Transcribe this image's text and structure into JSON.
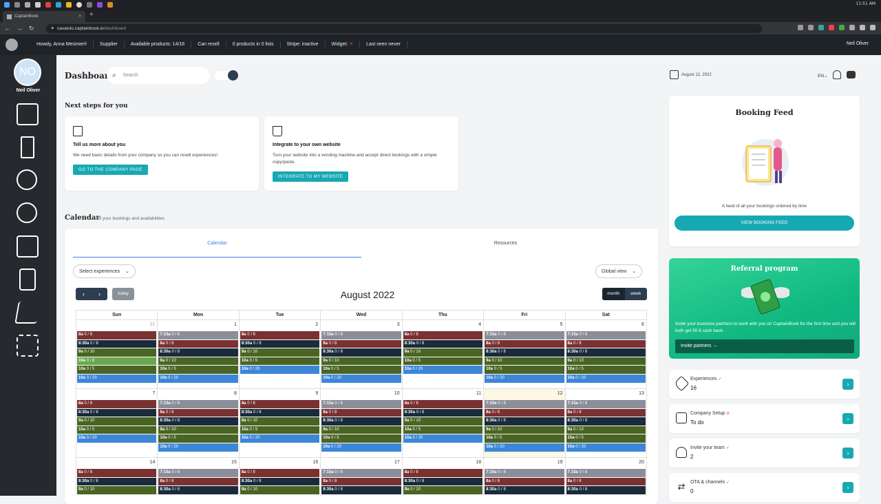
{
  "os": {
    "clock": "11:51 AM"
  },
  "browser": {
    "tab_title": "CaptainBook",
    "url_host": "casaiolo.captainbook.io",
    "url_path": "/dashboard"
  },
  "adminbar": {
    "items": [
      "Howdy, Anna Mesimeri!",
      "Supplier",
      "Available products: 14/16",
      "Can resell",
      "0 products in 0 lists",
      "Stripe: inactive",
      "Widget:",
      "Last seen never"
    ],
    "user": "Neil Oliver"
  },
  "sidebar": {
    "initials": "NO",
    "name": "Neil Oliver"
  },
  "header": {
    "title": "Dashboard",
    "search_placeholder": "Search",
    "date": "August 12, 2022",
    "lang": "EN"
  },
  "next_steps": {
    "title": "Next steps for you",
    "cards": [
      {
        "title": "Tell us more about you",
        "text": "We need basic details from your company so you can resell experiences!",
        "button": "GO TO THE COMPANY PAGE",
        "icon": "building-icon"
      },
      {
        "title": "Integrate to your own website",
        "text": "Turn your website into a vending machine and accept direct bookings with a simple copy/paste.",
        "button": "INTEGRATE TO MY WEBSITE",
        "icon": "cart-icon"
      }
    ]
  },
  "calendar": {
    "title": "Calendar",
    "subtitle": "All your bookings and availabilities",
    "tabs": [
      "Calendar",
      "Resources"
    ],
    "select_experiences": "Select experiences",
    "global_view": "Global view",
    "today": "today",
    "month_title": "August 2022",
    "view_month": "month",
    "view_week": "week",
    "days": [
      "Sun",
      "Mon",
      "Tue",
      "Wed",
      "Thu",
      "Fri",
      "Sat"
    ],
    "colors": {
      "red": "#7a3131",
      "navy": "#1a2b3b",
      "olive": "#4a6424",
      "blue": "#3d86d6",
      "gray": "#8b8e99",
      "green": "#6aa84f"
    },
    "weeks": [
      {
        "days": [
          {
            "num": "31",
            "other": true,
            "events": [
              [
                "8a",
                "0 / 8",
                "red"
              ],
              [
                "8:30a",
                "0 / 8",
                "navy"
              ],
              [
                "9a",
                "0 / 10",
                "olive"
              ],
              [
                "10a",
                "0 / 8",
                "green"
              ],
              [
                "10a",
                "0 / 5",
                "olive"
              ],
              [
                "10a",
                "0 / 20",
                "blue"
              ]
            ]
          },
          {
            "num": "1",
            "events": [
              [
                "7:15a",
                "0 / 8",
                "gray"
              ],
              [
                "8a",
                "0 / 8",
                "red"
              ],
              [
                "8:30a",
                "0 / 8",
                "navy"
              ],
              [
                "9a",
                "0 / 10",
                "olive"
              ],
              [
                "10a",
                "0 / 5",
                "olive"
              ],
              [
                "10a",
                "0 / 20",
                "blue"
              ]
            ]
          },
          {
            "num": "2",
            "events": [
              [
                "8a",
                "0 / 8",
                "red"
              ],
              [
                "8:30a",
                "0 / 8",
                "navy"
              ],
              [
                "9a",
                "0 / 10",
                "olive"
              ],
              [
                "10a",
                "0 / 5",
                "olive"
              ],
              [
                "10a",
                "0 / 20",
                "blue"
              ]
            ]
          },
          {
            "num": "3",
            "events": [
              [
                "7:15a",
                "0 / 8",
                "gray"
              ],
              [
                "8a",
                "0 / 8",
                "red"
              ],
              [
                "8:30a",
                "0 / 8",
                "navy"
              ],
              [
                "9a",
                "0 / 10",
                "olive"
              ],
              [
                "10a",
                "0 / 5",
                "olive"
              ],
              [
                "10a",
                "0 / 20",
                "blue"
              ]
            ]
          },
          {
            "num": "4",
            "events": [
              [
                "8a",
                "0 / 8",
                "red"
              ],
              [
                "8:30a",
                "0 / 8",
                "navy"
              ],
              [
                "9a",
                "0 / 10",
                "olive"
              ],
              [
                "10a",
                "0 / 5",
                "olive"
              ],
              [
                "10a",
                "0 / 20",
                "blue"
              ]
            ]
          },
          {
            "num": "5",
            "events": [
              [
                "7:15a",
                "0 / 8",
                "gray"
              ],
              [
                "8a",
                "0 / 8",
                "red"
              ],
              [
                "8:30a",
                "0 / 8",
                "navy"
              ],
              [
                "9a",
                "0 / 10",
                "olive"
              ],
              [
                "10a",
                "0 / 5",
                "olive"
              ],
              [
                "10a",
                "0 / 20",
                "blue"
              ]
            ]
          },
          {
            "num": "6",
            "events": [
              [
                "7:15a",
                "0 / 8",
                "gray"
              ],
              [
                "8a",
                "0 / 8",
                "red"
              ],
              [
                "8:30a",
                "0 / 8",
                "navy"
              ],
              [
                "9a",
                "0 / 10",
                "olive"
              ],
              [
                "10a",
                "0 / 5",
                "olive"
              ],
              [
                "10a",
                "0 / 20",
                "blue"
              ]
            ]
          }
        ]
      },
      {
        "days": [
          {
            "num": "7",
            "events": [
              [
                "8a",
                "0 / 8",
                "red"
              ],
              [
                "8:30a",
                "0 / 8",
                "navy"
              ],
              [
                "9a",
                "0 / 10",
                "olive"
              ],
              [
                "10a",
                "0 / 5",
                "olive"
              ],
              [
                "10a",
                "0 / 20",
                "blue"
              ]
            ]
          },
          {
            "num": "8",
            "events": [
              [
                "7:15a",
                "0 / 8",
                "gray"
              ],
              [
                "8a",
                "0 / 8",
                "red"
              ],
              [
                "8:30a",
                "0 / 8",
                "navy"
              ],
              [
                "9a",
                "0 / 10",
                "olive"
              ],
              [
                "10a",
                "0 / 5",
                "olive"
              ],
              [
                "10a",
                "0 / 20",
                "blue"
              ]
            ]
          },
          {
            "num": "9",
            "events": [
              [
                "8a",
                "0 / 8",
                "red"
              ],
              [
                "8:30a",
                "0 / 8",
                "navy"
              ],
              [
                "9a",
                "0 / 10",
                "olive"
              ],
              [
                "10a",
                "0 / 5",
                "olive"
              ],
              [
                "10a",
                "0 / 20",
                "blue"
              ]
            ]
          },
          {
            "num": "10",
            "events": [
              [
                "7:15a",
                "0 / 8",
                "gray"
              ],
              [
                "8a",
                "0 / 8",
                "red"
              ],
              [
                "8:30a",
                "0 / 8",
                "navy"
              ],
              [
                "9a",
                "0 / 10",
                "olive"
              ],
              [
                "10a",
                "0 / 5",
                "olive"
              ],
              [
                "10a",
                "0 / 20",
                "blue"
              ]
            ]
          },
          {
            "num": "11",
            "events": [
              [
                "8a",
                "0 / 8",
                "red"
              ],
              [
                "8:30a",
                "0 / 8",
                "navy"
              ],
              [
                "9a",
                "0 / 10",
                "olive"
              ],
              [
                "10a",
                "0 / 5",
                "olive"
              ],
              [
                "10a",
                "0 / 20",
                "blue"
              ]
            ]
          },
          {
            "num": "12",
            "today": true,
            "events": [
              [
                "7:15a",
                "0 / 8",
                "gray"
              ],
              [
                "8a",
                "0 / 8",
                "red"
              ],
              [
                "8:30a",
                "0 / 8",
                "navy"
              ],
              [
                "9a",
                "0 / 10",
                "olive"
              ],
              [
                "10a",
                "0 / 5",
                "olive"
              ],
              [
                "10a",
                "0 / 20",
                "blue"
              ]
            ]
          },
          {
            "num": "13",
            "events": [
              [
                "7:15a",
                "0 / 8",
                "gray"
              ],
              [
                "8a",
                "0 / 8",
                "red"
              ],
              [
                "8:30a",
                "0 / 8",
                "navy"
              ],
              [
                "9a",
                "0 / 10",
                "olive"
              ],
              [
                "10a",
                "0 / 5",
                "olive"
              ],
              [
                "10a",
                "0 / 20",
                "blue"
              ]
            ]
          }
        ]
      },
      {
        "days": [
          {
            "num": "14",
            "events": [
              [
                "8a",
                "0 / 8",
                "red"
              ],
              [
                "8:30a",
                "0 / 8",
                "navy"
              ],
              [
                "9a",
                "0 / 10",
                "olive"
              ]
            ]
          },
          {
            "num": "15",
            "events": [
              [
                "7:15a",
                "0 / 8",
                "gray"
              ],
              [
                "8a",
                "0 / 8",
                "red"
              ],
              [
                "8:30a",
                "0 / 8",
                "navy"
              ]
            ]
          },
          {
            "num": "16",
            "events": [
              [
                "8a",
                "0 / 8",
                "red"
              ],
              [
                "8:30a",
                "0 / 8",
                "navy"
              ],
              [
                "9a",
                "0 / 10",
                "olive"
              ]
            ]
          },
          {
            "num": "17",
            "events": [
              [
                "7:15a",
                "0 / 8",
                "gray"
              ],
              [
                "8a",
                "0 / 8",
                "red"
              ],
              [
                "8:30a",
                "0 / 8",
                "navy"
              ]
            ]
          },
          {
            "num": "18",
            "events": [
              [
                "8a",
                "0 / 8",
                "red"
              ],
              [
                "8:30a",
                "0 / 8",
                "navy"
              ],
              [
                "9a",
                "0 / 10",
                "olive"
              ]
            ]
          },
          {
            "num": "19",
            "events": [
              [
                "7:15a",
                "0 / 8",
                "gray"
              ],
              [
                "8a",
                "0 / 8",
                "red"
              ],
              [
                "8:30a",
                "0 / 8",
                "navy"
              ]
            ]
          },
          {
            "num": "20",
            "events": [
              [
                "7:15a",
                "0 / 8",
                "gray"
              ],
              [
                "8a",
                "0 / 8",
                "red"
              ],
              [
                "8:30a",
                "0 / 8",
                "navy"
              ]
            ]
          }
        ]
      }
    ]
  },
  "feed": {
    "title": "Booking Feed",
    "text": "A feed of all your bookings ordered by time",
    "button": "VIEW BOOKING FEED"
  },
  "referral": {
    "title": "Referral program",
    "text": "Invite your business partners to work with you on CaptainBook for the first time and you will both get 50 € cash back.",
    "button": "Invite partners →"
  },
  "stats": [
    {
      "label": "Experiences",
      "value": "16",
      "status": "ok",
      "icon": "tag-icon"
    },
    {
      "label": "Company Setup",
      "value": "To do",
      "status": "bad",
      "icon": "building-icon"
    },
    {
      "label": "Invite your team",
      "value": "2",
      "status": "ok",
      "icon": "user-plus-icon"
    },
    {
      "label": "OTA & channels",
      "value": "0",
      "status": "ok",
      "icon": "arrows-icon"
    }
  ]
}
